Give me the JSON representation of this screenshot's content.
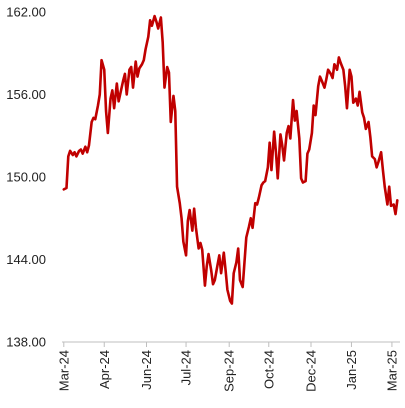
{
  "chart_data": {
    "type": "line",
    "title": "",
    "xlabel": "",
    "ylabel": "",
    "ylim": [
      138,
      162
    ],
    "y_ticks": [
      "162.00",
      "156.00",
      "150.00",
      "144.00",
      "138.00"
    ],
    "y_tick_values": [
      162,
      156,
      150,
      144,
      138
    ],
    "x_ticks": [
      "Mar-24",
      "Apr-24",
      "Jun-24",
      "Jul-24",
      "Sep-24",
      "Oct-24",
      "Dec-24",
      "Jan-25",
      "Mar-25"
    ],
    "x_tick_dates": [
      "2024-03-01",
      "2024-04-15",
      "2024-06-01",
      "2024-07-15",
      "2024-09-01",
      "2024-10-15",
      "2024-12-01",
      "2025-01-15",
      "2025-03-01"
    ],
    "grid": false,
    "legend": "none",
    "color": "#c00000",
    "series": [
      {
        "x": [
          "2024-03-01",
          "2024-03-04",
          "2024-03-06",
          "2024-03-08",
          "2024-03-11",
          "2024-03-13",
          "2024-03-15",
          "2024-03-18",
          "2024-03-20",
          "2024-03-22",
          "2024-03-25",
          "2024-03-27",
          "2024-03-29",
          "2024-04-01",
          "2024-04-03",
          "2024-04-05",
          "2024-04-08",
          "2024-04-10",
          "2024-04-12",
          "2024-04-15",
          "2024-04-17",
          "2024-04-19",
          "2024-04-22",
          "2024-04-24",
          "2024-04-26",
          "2024-04-29",
          "2024-05-01",
          "2024-05-03",
          "2024-05-06",
          "2024-05-08",
          "2024-05-10",
          "2024-05-13",
          "2024-05-15",
          "2024-05-17",
          "2024-05-20",
          "2024-05-22",
          "2024-05-24",
          "2024-05-27",
          "2024-05-29",
          "2024-05-31",
          "2024-06-03",
          "2024-06-05",
          "2024-06-07",
          "2024-06-10",
          "2024-06-12",
          "2024-06-14",
          "2024-06-17",
          "2024-06-19",
          "2024-06-21",
          "2024-06-24",
          "2024-06-26",
          "2024-06-28",
          "2024-07-01",
          "2024-07-03",
          "2024-07-05",
          "2024-07-08",
          "2024-07-10",
          "2024-07-12",
          "2024-07-15",
          "2024-07-17",
          "2024-07-19",
          "2024-07-22",
          "2024-07-24",
          "2024-07-26",
          "2024-07-29",
          "2024-07-31",
          "2024-08-02",
          "2024-08-05",
          "2024-08-07",
          "2024-08-09",
          "2024-08-12",
          "2024-08-14",
          "2024-08-16",
          "2024-08-19",
          "2024-08-21",
          "2024-08-23",
          "2024-08-26",
          "2024-08-28",
          "2024-08-30",
          "2024-09-02",
          "2024-09-04",
          "2024-09-06",
          "2024-09-09",
          "2024-09-11",
          "2024-09-13",
          "2024-09-16",
          "2024-09-18",
          "2024-09-20",
          "2024-09-23",
          "2024-09-25",
          "2024-09-27",
          "2024-09-30",
          "2024-10-02",
          "2024-10-04",
          "2024-10-07",
          "2024-10-09",
          "2024-10-11",
          "2024-10-14",
          "2024-10-16",
          "2024-10-18",
          "2024-10-21",
          "2024-10-23",
          "2024-10-25",
          "2024-10-28",
          "2024-10-30",
          "2024-11-01",
          "2024-11-04",
          "2024-11-06",
          "2024-11-08",
          "2024-11-11",
          "2024-11-13",
          "2024-11-15",
          "2024-11-18",
          "2024-11-20",
          "2024-11-22",
          "2024-11-25",
          "2024-11-27",
          "2024-11-29",
          "2024-12-02",
          "2024-12-04",
          "2024-12-06",
          "2024-12-09",
          "2024-12-11",
          "2024-12-13",
          "2024-12-16",
          "2024-12-18",
          "2024-12-20",
          "2024-12-23",
          "2024-12-25",
          "2024-12-27",
          "2024-12-30",
          "2025-01-01",
          "2025-01-03",
          "2025-01-06",
          "2025-01-08",
          "2025-01-10",
          "2025-01-13",
          "2025-01-15",
          "2025-01-17",
          "2025-01-20",
          "2025-01-22",
          "2025-01-24",
          "2025-01-27",
          "2025-01-29",
          "2025-01-31",
          "2025-02-03",
          "2025-02-05",
          "2025-02-07",
          "2025-02-10",
          "2025-02-12",
          "2025-02-14",
          "2025-02-17",
          "2025-02-19",
          "2025-02-21",
          "2025-02-24",
          "2025-02-26",
          "2025-02-28",
          "2025-03-03",
          "2025-03-05",
          "2025-03-07"
        ],
        "y": [
          149.1,
          149.2,
          151.5,
          151.9,
          151.6,
          151.8,
          151.5,
          151.9,
          152.0,
          151.7,
          152.2,
          151.8,
          152.3,
          154.0,
          154.3,
          154.2,
          155.2,
          156.0,
          158.5,
          157.8,
          154.8,
          153.2,
          155.7,
          156.3,
          155.0,
          156.8,
          155.5,
          156.1,
          157.0,
          157.5,
          156.0,
          157.8,
          158.0,
          156.5,
          158.4,
          157.3,
          157.9,
          158.2,
          158.5,
          159.3,
          160.2,
          161.4,
          161.0,
          161.7,
          161.3,
          160.8,
          161.6,
          159.8,
          156.5,
          158.0,
          157.6,
          154.0,
          155.9,
          154.8,
          149.3,
          148.1,
          147.0,
          145.3,
          144.3,
          146.8,
          147.6,
          146.1,
          147.7,
          146.3,
          144.8,
          145.2,
          144.7,
          142.1,
          143.5,
          144.4,
          143.2,
          142.2,
          142.5,
          143.6,
          144.3,
          143.0,
          144.5,
          143.2,
          141.8,
          141.0,
          140.8,
          143.0,
          143.8,
          144.8,
          142.5,
          142.0,
          143.8,
          145.6,
          146.4,
          147.0,
          146.3,
          148.1,
          148.0,
          148.5,
          149.4,
          149.6,
          149.7,
          150.7,
          152.5,
          150.5,
          153.3,
          151.8,
          149.9,
          153.1,
          152.3,
          151.2,
          153.2,
          153.7,
          152.8,
          155.6,
          154.1,
          154.8,
          152.8,
          149.9,
          149.6,
          149.7,
          151.7,
          152.0,
          153.2,
          155.2,
          154.5,
          156.6,
          157.3,
          157.0,
          156.5,
          157.1,
          157.8,
          157.5,
          157.2,
          158.2,
          157.8,
          158.7,
          158.3,
          157.8,
          156.6,
          155.0,
          157.8,
          157.3,
          155.4,
          155.7,
          155.2,
          156.2,
          154.7,
          154.3,
          153.5,
          154.0,
          152.9,
          151.5,
          151.3,
          150.7,
          151.1,
          151.8,
          150.5,
          149.3,
          148.0,
          149.3,
          147.9,
          148.0,
          147.3,
          148.3
        ]
      }
    ]
  }
}
